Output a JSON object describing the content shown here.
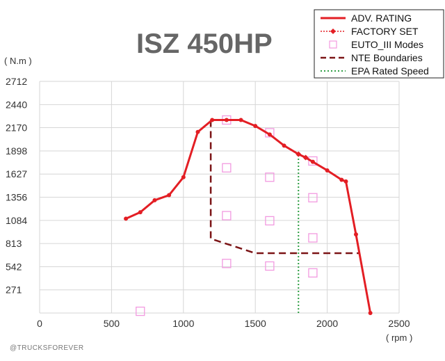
{
  "chart_data": {
    "type": "line",
    "title": "ISZ 450HP",
    "xlabel": "( rpm )",
    "ylabel": "( N.m )",
    "xlim": [
      0,
      2500
    ],
    "ylim": [
      0,
      2712
    ],
    "xticks": [
      0,
      500,
      1000,
      1500,
      2000,
      2500
    ],
    "yticks": [
      271,
      542,
      813,
      1084,
      1356,
      1627,
      1898,
      2170,
      2440,
      2712
    ],
    "grid": true,
    "legend_position": "top-right",
    "series": [
      {
        "name": "ADV. RATING",
        "color": "#e31e24",
        "style": "solid",
        "x": [
          600,
          700,
          800,
          900,
          1000,
          1100,
          1200,
          1300,
          1400,
          1500,
          1600,
          1700,
          1800,
          1850,
          1900,
          2000,
          2100,
          2130,
          2200,
          2300
        ],
        "y": [
          1105,
          1180,
          1320,
          1380,
          1590,
          2120,
          2260,
          2260,
          2260,
          2190,
          2090,
          1960,
          1860,
          1820,
          1770,
          1670,
          1560,
          1540,
          920,
          0
        ]
      },
      {
        "name": "FACTORY SET",
        "color": "#e31e24",
        "style": "dotted-diamond",
        "x": [
          1800,
          1850
        ],
        "y": [
          1860,
          1820
        ]
      },
      {
        "name": "EUTO_III Modes",
        "color": "#f29ae0",
        "style": "square-marker",
        "x": [
          700,
          1300,
          1300,
          1300,
          1300,
          1600,
          1600,
          1600,
          1600,
          1900,
          1900,
          1900,
          1900
        ],
        "y": [
          20,
          2260,
          1700,
          1140,
          580,
          2110,
          1590,
          1080,
          550,
          1780,
          1350,
          880,
          470
        ]
      },
      {
        "name": "NTE Boundaries",
        "color": "#7b1416",
        "style": "dashed",
        "x": [
          1190,
          1190,
          1500,
          2220
        ],
        "y": [
          2260,
          870,
          700,
          700
        ]
      },
      {
        "name": "EPA Rated Speed",
        "color": "#2e9e44",
        "style": "dotted",
        "x": [
          1800,
          1800
        ],
        "y": [
          0,
          1860
        ]
      }
    ]
  },
  "credit": "@TRUCKSFOREVER"
}
